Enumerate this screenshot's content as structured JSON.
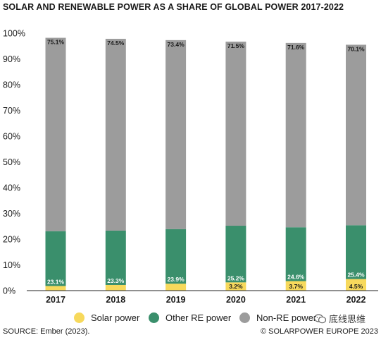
{
  "chart_data": {
    "type": "bar",
    "stacked": true,
    "title": "SOLAR AND RENEWABLE POWER AS A SHARE OF GLOBAL POWER 2017-2022",
    "xlabel": "",
    "ylabel": "",
    "ylim": [
      0,
      100
    ],
    "y_ticks": [
      "0%",
      "10%",
      "20%",
      "30%",
      "40%",
      "50%",
      "60%",
      "70%",
      "80%",
      "90%",
      "100%"
    ],
    "grid": false,
    "legend_position": "bottom",
    "categories": [
      "2017",
      "2018",
      "2019",
      "2020",
      "2021",
      "2022"
    ],
    "series": [
      {
        "name": "Solar power",
        "color": "#f7d95c",
        "label_color": "#1a1a1a",
        "values": [
          1.8,
          2.2,
          2.7,
          3.2,
          3.7,
          4.5
        ],
        "data_labels": [
          "",
          "",
          "",
          "3.2%",
          "3.7%",
          "4.5%"
        ]
      },
      {
        "name": "Other RE power",
        "color": "#3a8f6c",
        "label_color": "#ffffff",
        "values": [
          21.3,
          21.1,
          21.2,
          22.0,
          20.9,
          20.9
        ],
        "data_labels": [
          "23.1%",
          "23.3%",
          "23.9%",
          "25.2%",
          "24.6%",
          "25.4%"
        ]
      },
      {
        "name": "Non-RE power",
        "color": "#9c9c9c",
        "label_color": "#1a1a1a",
        "values": [
          75.1,
          74.5,
          73.4,
          71.5,
          71.6,
          70.1
        ],
        "data_labels": [
          "75.1%",
          "74.5%",
          "73.4%",
          "71.5%",
          "71.6%",
          "70.1%"
        ]
      }
    ]
  },
  "footer": {
    "source": "SOURCE: Ember (2023).",
    "credit": "© SOLARPOWER EUROPE 2023"
  },
  "watermark": {
    "text": "底线思维",
    "icon": "wechat-icon"
  }
}
